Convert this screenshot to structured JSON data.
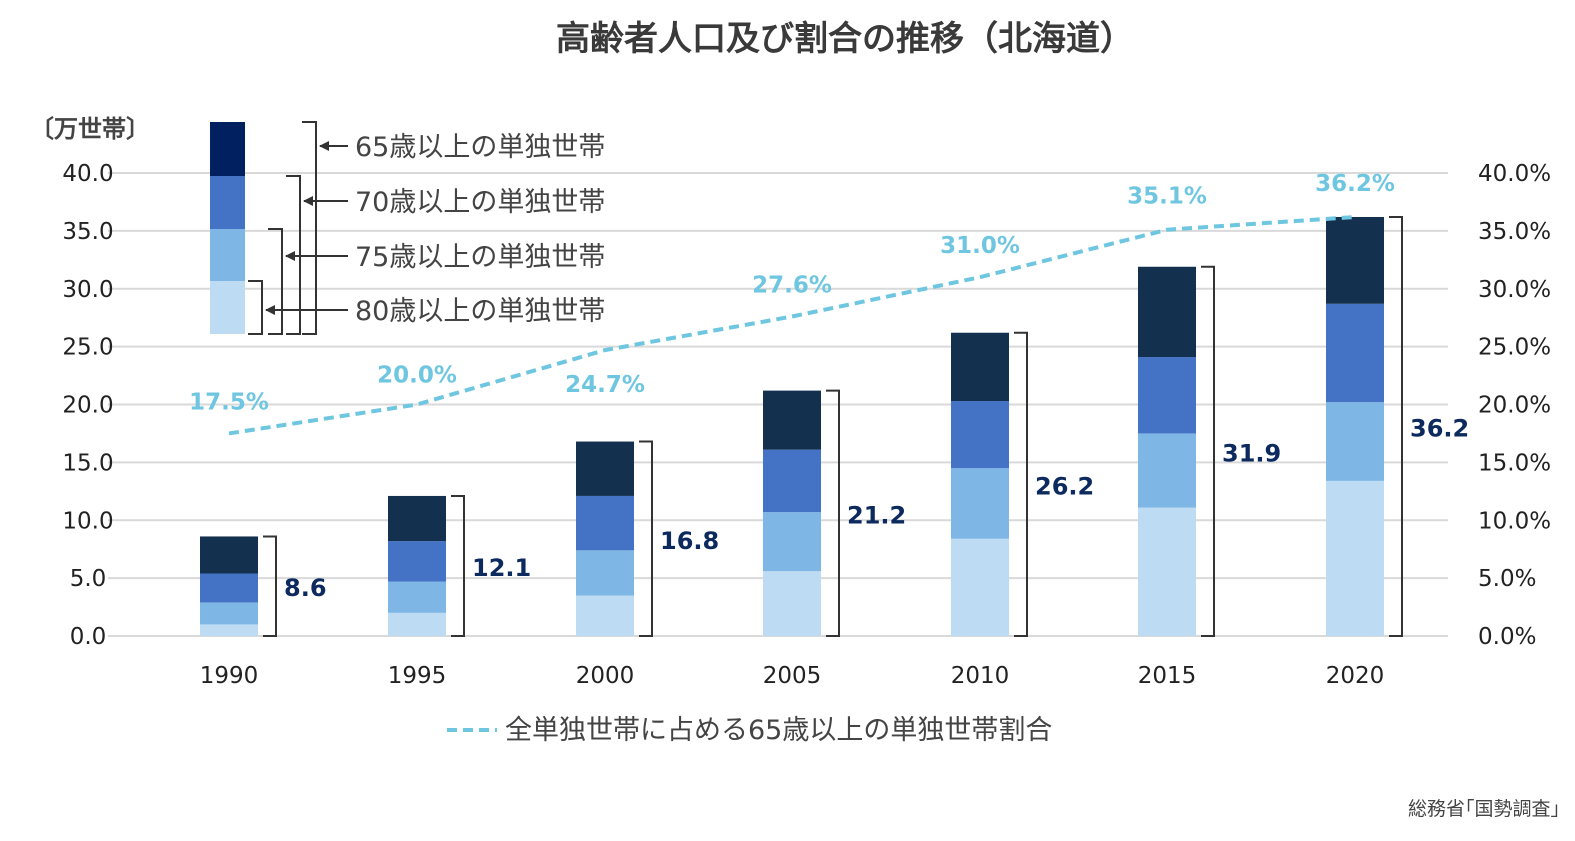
{
  "chart_data": {
    "type": "bar",
    "title": "高齢者人口及び割合の推移（北海道）",
    "y_unit_label": "〔万世帯〕",
    "categories": [
      "1990",
      "1995",
      "2000",
      "2005",
      "2010",
      "2015",
      "2020"
    ],
    "left_axis": {
      "ylim": [
        0,
        40
      ],
      "ticks": [
        "0.0",
        "5.0",
        "10.0",
        "15.0",
        "20.0",
        "25.0",
        "30.0",
        "35.0",
        "40.0"
      ]
    },
    "right_axis": {
      "ylim": [
        0,
        40
      ],
      "ticks": [
        "0.0%",
        "5.0%",
        "10.0%",
        "15.0%",
        "20.0%",
        "25.0%",
        "30.0%",
        "35.0%",
        "40.0%"
      ]
    },
    "grid": true,
    "stacked_series_cumulative": [
      {
        "name": "80歳以上の単独世帯",
        "color": "#bddbf3",
        "values": [
          1.0,
          2.0,
          3.5,
          5.6,
          8.4,
          11.1,
          13.4
        ]
      },
      {
        "name": "75歳以上の単独世帯",
        "color": "#7eb6e6",
        "values": [
          2.9,
          4.7,
          7.4,
          10.7,
          14.5,
          17.5,
          20.2
        ]
      },
      {
        "name": "70歳以上の単独世帯",
        "color": "#4472c4",
        "values": [
          5.4,
          8.2,
          12.1,
          16.1,
          20.3,
          24.1,
          28.7
        ]
      },
      {
        "name": "65歳以上の単独世帯",
        "color": "#13314f",
        "values": [
          8.6,
          12.1,
          16.8,
          21.2,
          26.2,
          31.9,
          36.2
        ]
      }
    ],
    "total_labels": [
      "8.6",
      "12.1",
      "16.8",
      "21.2",
      "26.2",
      "31.9",
      "36.2"
    ],
    "line_series": {
      "name": "全単独世帯に占める65歳以上の単独世帯割合",
      "color": "#6ec6e0",
      "style": "dashed",
      "axis": "right",
      "values": [
        17.5,
        20.0,
        24.7,
        27.6,
        31.0,
        35.1,
        36.2
      ],
      "labels": [
        "17.5%",
        "20.0%",
        "24.7%",
        "27.6%",
        "31.0%",
        "35.1%",
        "36.2%"
      ]
    },
    "legend_placement": "bottom",
    "source": "総務省｢国勢調査｣"
  }
}
